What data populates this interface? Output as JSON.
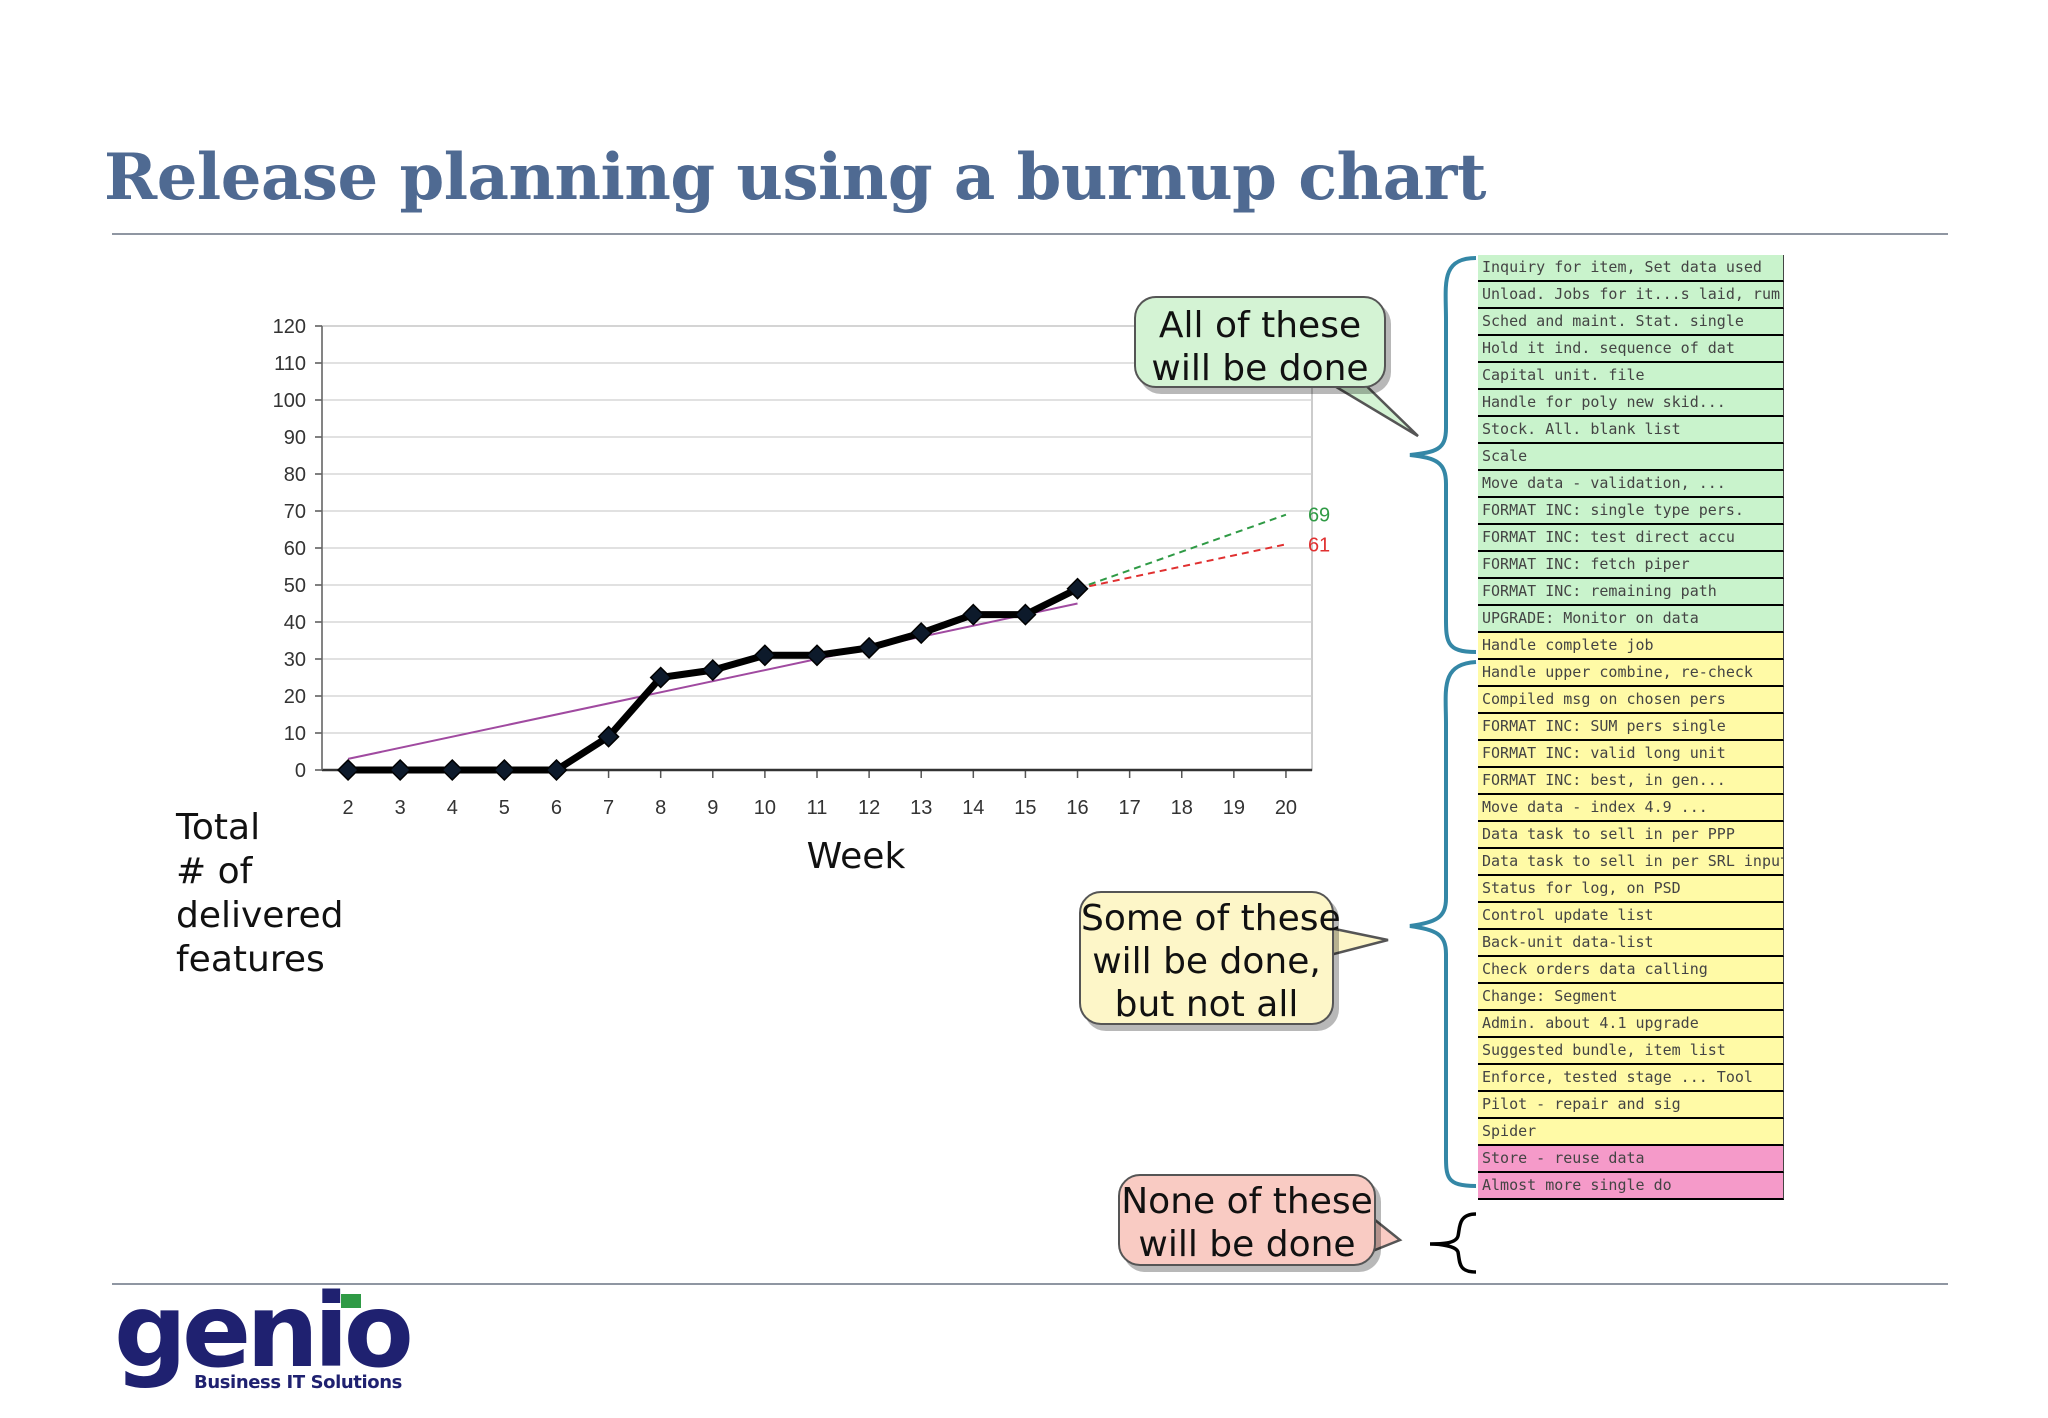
{
  "slide": {
    "title": "Release planning using a burnup chart",
    "y_axis_title": [
      "Total",
      "# of",
      "delivered",
      "features"
    ],
    "x_axis_title": "Week"
  },
  "callouts": {
    "all": [
      "All of these",
      "will be done"
    ],
    "some": [
      "Some of these",
      "will be done,",
      "but not all"
    ],
    "none": [
      "None of these",
      "will be done"
    ]
  },
  "chart_data": {
    "type": "line",
    "xlabel": "Week",
    "ylabel": "Total # of delivered features",
    "x": [
      2,
      3,
      4,
      5,
      6,
      7,
      8,
      9,
      10,
      11,
      12,
      13,
      14,
      15,
      16
    ],
    "xlim": [
      1.5,
      20.5
    ],
    "ylim": [
      0,
      120
    ],
    "x_ticks": [
      2,
      3,
      4,
      5,
      6,
      7,
      8,
      9,
      10,
      11,
      12,
      13,
      14,
      15,
      16,
      17,
      18,
      19,
      20
    ],
    "y_ticks": [
      0,
      10,
      20,
      30,
      40,
      50,
      60,
      70,
      80,
      90,
      100,
      110,
      120
    ],
    "grid": true,
    "series": [
      {
        "values": [
          0,
          0,
          0,
          0,
          0,
          9,
          25,
          27,
          31,
          31,
          33,
          37,
          42,
          42,
          49
        ],
        "color": "#000000",
        "style": "solid-markers"
      }
    ],
    "trendline": {
      "x": [
        2,
        16
      ],
      "y": [
        3,
        45
      ],
      "color": "#a04aa0"
    },
    "projections": [
      {
        "x": [
          16,
          20
        ],
        "y": [
          49,
          69
        ],
        "color": "#2f9a45",
        "style": "dashed",
        "label": "69"
      },
      {
        "x": [
          16,
          20
        ],
        "y": [
          49,
          61
        ],
        "color": "#e03030",
        "style": "dashed",
        "label": "61"
      }
    ]
  },
  "backlog": {
    "colors": {
      "will_be_done": "#c9f3cc",
      "some_done": "#fffaa6",
      "not_done": "#f59ac9"
    },
    "groups": [
      {
        "status": "will_be_done",
        "features": [
          "Inquiry for item, Set data used",
          "Unload. Jobs for it...s laid, rum",
          "Sched and maint. Stat. single",
          "Hold it ind. sequence of dat",
          "Capital unit. file",
          "Handle for poly new skid...",
          "Stock. All. blank list",
          "Scale",
          "Move data - validation, ...",
          "FORMAT INC: single type pers.",
          "FORMAT INC: test direct accu",
          "FORMAT INC: fetch piper",
          "FORMAT INC: remaining path",
          "UPGRADE: Monitor on data"
        ]
      },
      {
        "status": "some_done",
        "features": [
          "Handle complete job",
          "Handle upper combine, re-check",
          "Compiled msg on chosen pers",
          "FORMAT INC: SUM pers single",
          "FORMAT INC: valid long unit",
          "FORMAT INC: best, in gen...",
          "Move data - index 4.9 ...",
          "Data task to sell in per PPP",
          "Data task to sell in per SRL input",
          "Status for log, on PSD",
          "Control update list",
          "Back-unit data-list",
          "Check orders data calling",
          "Change: Segment",
          "Admin. about 4.1 upgrade",
          "Suggested bundle, item list",
          "Enforce, tested stage ... Tool",
          "Pilot - repair and sig",
          "Spider"
        ]
      },
      {
        "status": "not_done",
        "features": [
          "Store - reuse data",
          "Almost more single do"
        ]
      }
    ]
  },
  "logo": {
    "word": "genio",
    "tagline": "Business IT Solutions"
  }
}
